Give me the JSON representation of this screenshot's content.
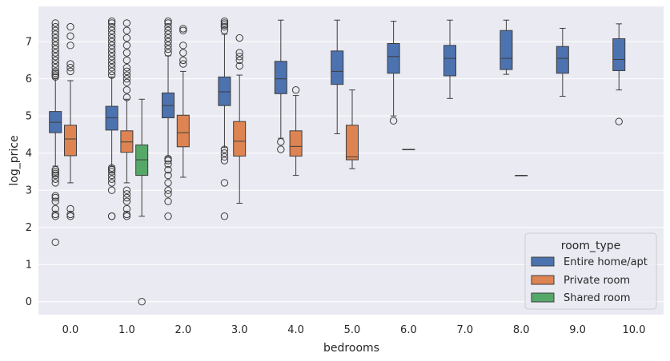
{
  "chart_data": {
    "type": "boxplot",
    "xlabel": "bedrooms",
    "ylabel": "log_price",
    "ylim": [
      -0.35,
      7.95
    ],
    "yticks": [
      "0",
      "1",
      "2",
      "3",
      "4",
      "5",
      "6",
      "7"
    ],
    "categories": [
      "0.0",
      "1.0",
      "2.0",
      "3.0",
      "4.0",
      "5.0",
      "6.0",
      "7.0",
      "8.0",
      "9.0",
      "10.0"
    ],
    "legend": {
      "title": "room_type",
      "position": "lower-right"
    },
    "series": [
      {
        "name": "Entire home/apt",
        "color": "#4C72B0",
        "boxes": [
          {
            "category": "0.0",
            "whislo": 3.65,
            "q1": 4.55,
            "med": 4.83,
            "q3": 5.12,
            "whishi": 6.0,
            "fliers": [
              1.6,
              2.3,
              2.35,
              2.5,
              2.7,
              2.8,
              2.85,
              3.2,
              3.3,
              3.4,
              3.45,
              3.5,
              3.55,
              6.05,
              6.1,
              6.15,
              6.2,
              6.3,
              6.4,
              6.5,
              6.6,
              6.7,
              6.8,
              6.9,
              7.0,
              7.1,
              7.2,
              7.3,
              7.4,
              7.5
            ]
          },
          {
            "category": "1.0",
            "whislo": 3.65,
            "q1": 4.62,
            "med": 4.95,
            "q3": 5.26,
            "whishi": 6.05,
            "fliers": [
              2.3,
              2.3,
              3.0,
              3.2,
              3.3,
              3.4,
              3.5,
              3.55,
              3.6,
              6.1,
              6.2,
              6.3,
              6.4,
              6.5,
              6.6,
              6.7,
              6.8,
              6.9,
              7.0,
              7.1,
              7.2,
              7.3,
              7.4,
              7.5,
              7.55
            ]
          },
          {
            "category": "2.0",
            "whislo": 3.9,
            "q1": 4.95,
            "med": 5.28,
            "q3": 5.62,
            "whishi": 6.62,
            "fliers": [
              2.3,
              2.7,
              2.9,
              3.0,
              3.2,
              3.4,
              3.55,
              3.7,
              3.8,
              3.85,
              6.7,
              6.8,
              6.9,
              7.0,
              7.1,
              7.2,
              7.3,
              7.4,
              7.5,
              7.55
            ]
          },
          {
            "category": "3.0",
            "whislo": 4.15,
            "q1": 5.28,
            "med": 5.65,
            "q3": 6.05,
            "whishi": 7.2,
            "fliers": [
              2.3,
              3.2,
              3.8,
              3.9,
              4.0,
              4.1,
              7.3,
              7.4,
              7.45,
              7.5,
              7.55
            ]
          },
          {
            "category": "4.0",
            "whislo": 4.4,
            "q1": 5.6,
            "med": 6.0,
            "q3": 6.47,
            "whishi": 7.58,
            "fliers": [
              4.3,
              4.1
            ]
          },
          {
            "category": "5.0",
            "whislo": 4.52,
            "q1": 5.85,
            "med": 6.2,
            "q3": 6.75,
            "whishi": 7.58,
            "fliers": []
          },
          {
            "category": "6.0",
            "whislo": 5.0,
            "q1": 6.15,
            "med": 6.6,
            "q3": 6.95,
            "whishi": 7.55,
            "fliers": [
              4.87
            ]
          },
          {
            "category": "7.0",
            "whislo": 5.47,
            "q1": 6.08,
            "med": 6.55,
            "q3": 6.9,
            "whishi": 7.58,
            "fliers": []
          },
          {
            "category": "8.0",
            "whislo": 6.12,
            "q1": 6.25,
            "med": 6.55,
            "q3": 7.3,
            "whishi": 7.58,
            "fliers": []
          },
          {
            "category": "9.0",
            "whislo": 5.53,
            "q1": 6.15,
            "med": 6.55,
            "q3": 6.87,
            "whishi": 7.36,
            "fliers": []
          },
          {
            "category": "10.0",
            "whislo": 5.7,
            "q1": 6.22,
            "med": 6.52,
            "q3": 7.08,
            "whishi": 7.48,
            "fliers": [
              4.85
            ]
          }
        ]
      },
      {
        "name": "Private room",
        "color": "#DD8452",
        "boxes": [
          {
            "category": "0.0",
            "whislo": 3.2,
            "q1": 3.93,
            "med": 4.38,
            "q3": 4.75,
            "whishi": 5.95,
            "fliers": [
              2.3,
              2.35,
              2.5,
              6.2,
              6.3,
              6.4,
              6.9,
              7.15,
              7.4
            ]
          },
          {
            "category": "1.0",
            "whislo": 3.2,
            "q1": 4.02,
            "med": 4.3,
            "q3": 4.6,
            "whishi": 5.45,
            "fliers": [
              2.3,
              2.35,
              2.5,
              2.7,
              2.8,
              2.9,
              3.0,
              5.5,
              5.7,
              5.9,
              6.0,
              6.1,
              6.2,
              6.3,
              6.5,
              6.7,
              6.9,
              7.1,
              7.3,
              7.5
            ]
          },
          {
            "category": "2.0",
            "whislo": 3.35,
            "q1": 4.17,
            "med": 4.55,
            "q3": 5.02,
            "whishi": 6.2,
            "fliers": [
              6.4,
              6.5,
              6.7,
              6.9,
              7.3,
              7.35
            ]
          },
          {
            "category": "3.0",
            "whislo": 2.65,
            "q1": 3.92,
            "med": 4.32,
            "q3": 4.85,
            "whishi": 6.1,
            "fliers": [
              6.35,
              6.5,
              6.6,
              6.7,
              7.1
            ]
          },
          {
            "category": "4.0",
            "whislo": 3.4,
            "q1": 3.92,
            "med": 4.18,
            "q3": 4.6,
            "whishi": 5.55,
            "fliers": [
              5.7
            ]
          },
          {
            "category": "5.0",
            "whislo": 3.58,
            "q1": 3.82,
            "med": 3.9,
            "q3": 4.75,
            "whishi": 5.7,
            "fliers": []
          },
          {
            "category": "6.0",
            "whislo": 4.1,
            "q1": 4.1,
            "med": 4.1,
            "q3": 4.1,
            "whishi": 4.1,
            "fliers": []
          },
          {
            "category": "8.0",
            "whislo": 3.4,
            "q1": 3.4,
            "med": 3.4,
            "q3": 3.4,
            "whishi": 3.4,
            "fliers": []
          }
        ]
      },
      {
        "name": "Shared room",
        "color": "#55A868",
        "boxes": [
          {
            "category": "1.0",
            "whislo": 2.3,
            "q1": 3.4,
            "med": 3.82,
            "q3": 4.22,
            "whishi": 5.45,
            "fliers": [
              0.0
            ]
          }
        ]
      }
    ]
  }
}
